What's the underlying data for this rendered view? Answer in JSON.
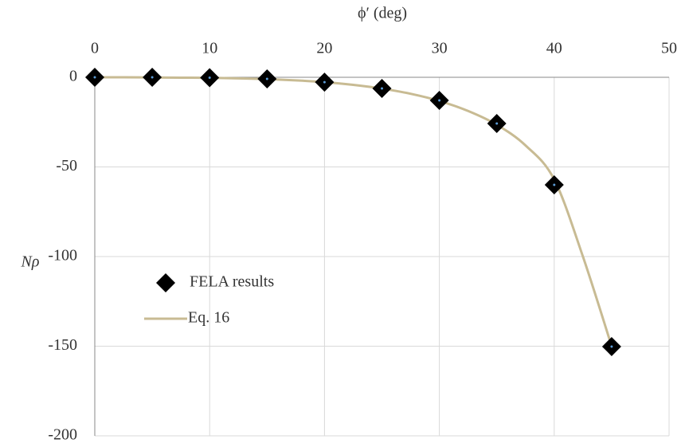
{
  "chart_data": {
    "type": "scatter",
    "x_label": "ϕ′ (deg)",
    "y_label": "Nρ",
    "xlim": [
      0,
      50
    ],
    "xticks": [
      0,
      10,
      20,
      30,
      40,
      50
    ],
    "ylim": [
      -200,
      0
    ],
    "yticks": [
      -200,
      -150,
      -100,
      -50,
      0
    ],
    "grid": true,
    "legend": "lower-left",
    "series": [
      {
        "name": "FELA results",
        "type": "scatter",
        "color": "#000000",
        "x": [
          0,
          5,
          10,
          15,
          20,
          25,
          30,
          35,
          40,
          45
        ],
        "values": [
          0,
          0,
          -0.2,
          -0.9,
          -2.7,
          -6.2,
          -12.9,
          -25.8,
          -60,
          -150.2
        ]
      },
      {
        "name": "Eq. 16",
        "type": "line",
        "color": "#c8bb93",
        "x": [
          0,
          2.5,
          5,
          7.5,
          10,
          12.5,
          15,
          17.5,
          20,
          22.5,
          25,
          27.5,
          30,
          32.5,
          35,
          37.5,
          40,
          42.5,
          45
        ],
        "values": [
          0,
          0,
          -0.1,
          -0.2,
          -0.3,
          -0.6,
          -1,
          -1.7,
          -2.7,
          -4.2,
          -6.3,
          -9.2,
          -13.2,
          -18.8,
          -26.5,
          -38,
          -57,
          -100,
          -150
        ]
      }
    ]
  }
}
